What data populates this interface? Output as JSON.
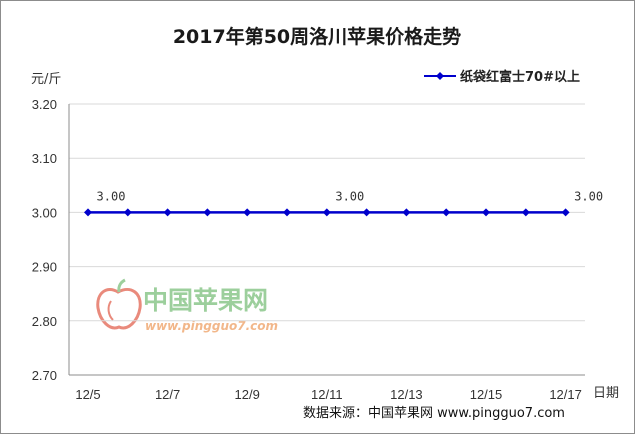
{
  "chart_data": {
    "type": "line",
    "title": "2017年第50周洛川苹果价格走势",
    "ylabel": "元/斤",
    "xlabel": "日期",
    "ylim": [
      2.7,
      3.2
    ],
    "yticks": [
      "3.20",
      "3.10",
      "3.00",
      "2.90",
      "2.80",
      "2.70"
    ],
    "grid": true,
    "legend_position": "top-right",
    "x": [
      "12/5",
      "12/6",
      "12/7",
      "12/8",
      "12/9",
      "12/10",
      "12/11",
      "12/12",
      "12/13",
      "12/14",
      "12/15",
      "12/16",
      "12/17"
    ],
    "xtick_labels": [
      "12/5",
      "12/7",
      "12/9",
      "12/11",
      "12/13",
      "12/15",
      "12/17"
    ],
    "series": [
      {
        "name": "纸袋红富士70#以上",
        "color": "#0000cc",
        "values": [
          3.0,
          3.0,
          3.0,
          3.0,
          3.0,
          3.0,
          3.0,
          3.0,
          3.0,
          3.0,
          3.0,
          3.0,
          3.0
        ]
      }
    ],
    "data_labels": [
      {
        "index": 0,
        "text": "3.00"
      },
      {
        "index": 6,
        "text": "3.00"
      },
      {
        "index": 12,
        "text": "3.00"
      }
    ]
  },
  "watermark": {
    "text": "中国苹果网",
    "url": "www.pingguo7.com",
    "logo_color": "#e98a7c"
  },
  "source": "数据来源：中国苹果网 www.pingguo7.com"
}
